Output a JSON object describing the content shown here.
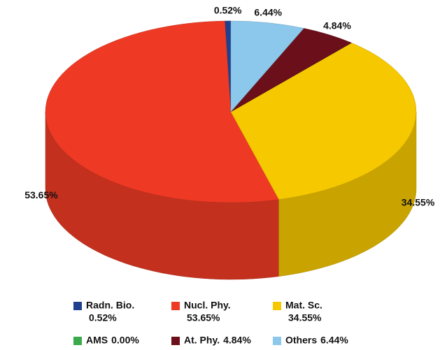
{
  "chart_data": {
    "type": "pie3d",
    "categories": [
      "Radn. Bio.",
      "Nucl. Phy.",
      "Mat. Sc.",
      "AMS",
      "At. Phy.",
      "Others"
    ],
    "values": [
      0.52,
      53.65,
      34.55,
      0.0,
      4.84,
      6.44
    ],
    "value_labels": [
      "0.52%",
      "53.65%",
      "34.55%",
      "0.00%",
      "4.84%",
      "6.44%"
    ],
    "colors": [
      "#1f3f8f",
      "#ee3a24",
      "#f5c800",
      "#3aaa4a",
      "#6b0f1a",
      "#8cc8ec"
    ],
    "legend": "bottom"
  }
}
